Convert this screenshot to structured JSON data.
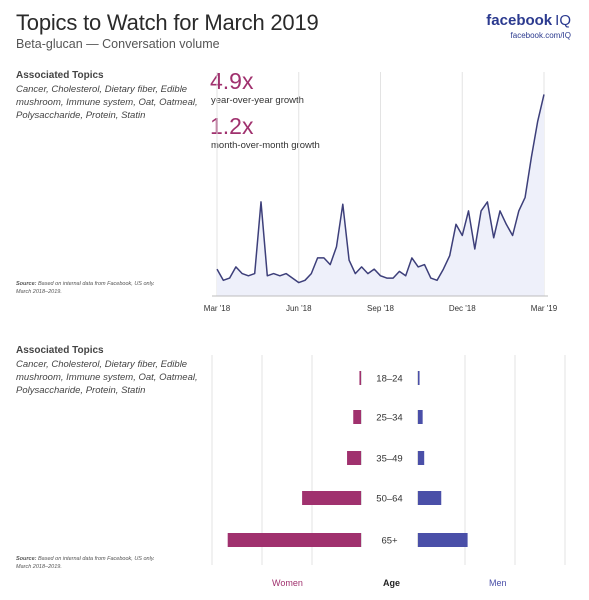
{
  "header": {
    "title": "Topics to Watch for March 2019",
    "subtitle": "Beta-glucan — Conversation volume",
    "brand_main": "facebook",
    "brand_suffix": "IQ",
    "brand_url": "facebook.com/IQ"
  },
  "topics": {
    "heading": "Associated Topics",
    "list": "Cancer, Cholesterol, Dietary fiber, Edible mushroom, Immune system, Oat, Oatmeal, Polysaccharide, Protein, Statin"
  },
  "source": {
    "label": "Source:",
    "text": "Based on internal data from Facebook, US only. March 2018–2019."
  },
  "growth": {
    "yoy_value": "4.9x",
    "yoy_label": "year-over-year growth",
    "mom_value": "1.2x",
    "mom_label": "month-over-month growth"
  },
  "colors": {
    "line": "#3d3f7a",
    "area": "#eef0fa",
    "women": "#a0316e",
    "men": "#4a4fa8",
    "grid": "#e3e3e3"
  },
  "chart_data": [
    {
      "type": "line",
      "x_ticks": [
        "Mar '18",
        "Jun '18",
        "Sep '18",
        "Dec '18",
        "Mar '19"
      ],
      "x_range": [
        0,
        52
      ],
      "ylim": [
        0,
        100
      ],
      "values": [
        12,
        7,
        8,
        13,
        10,
        9,
        10,
        42,
        9,
        10,
        9,
        10,
        8,
        6,
        7,
        10,
        17,
        17,
        14,
        22,
        41,
        16,
        10,
        13,
        10,
        12,
        9,
        8,
        8,
        11,
        9,
        17,
        13,
        14,
        8,
        7,
        12,
        18,
        32,
        27,
        38,
        21,
        38,
        42,
        26,
        38,
        32,
        27,
        38,
        44,
        62,
        78,
        90
      ]
    },
    {
      "type": "bar",
      "orientation": "horizontal-butterfly",
      "categories": [
        "18–24",
        "25–34",
        "35–49",
        "50–64",
        "65+"
      ],
      "series": [
        {
          "name": "Women",
          "values": [
            0.5,
            2.5,
            4.5,
            19,
            43
          ]
        },
        {
          "name": "Men",
          "values": [
            0.5,
            1.5,
            2,
            7.5,
            16
          ]
        }
      ],
      "xlabel_left": "Women",
      "xlabel_center": "Age",
      "xlabel_right": "Men",
      "max": 50
    }
  ]
}
